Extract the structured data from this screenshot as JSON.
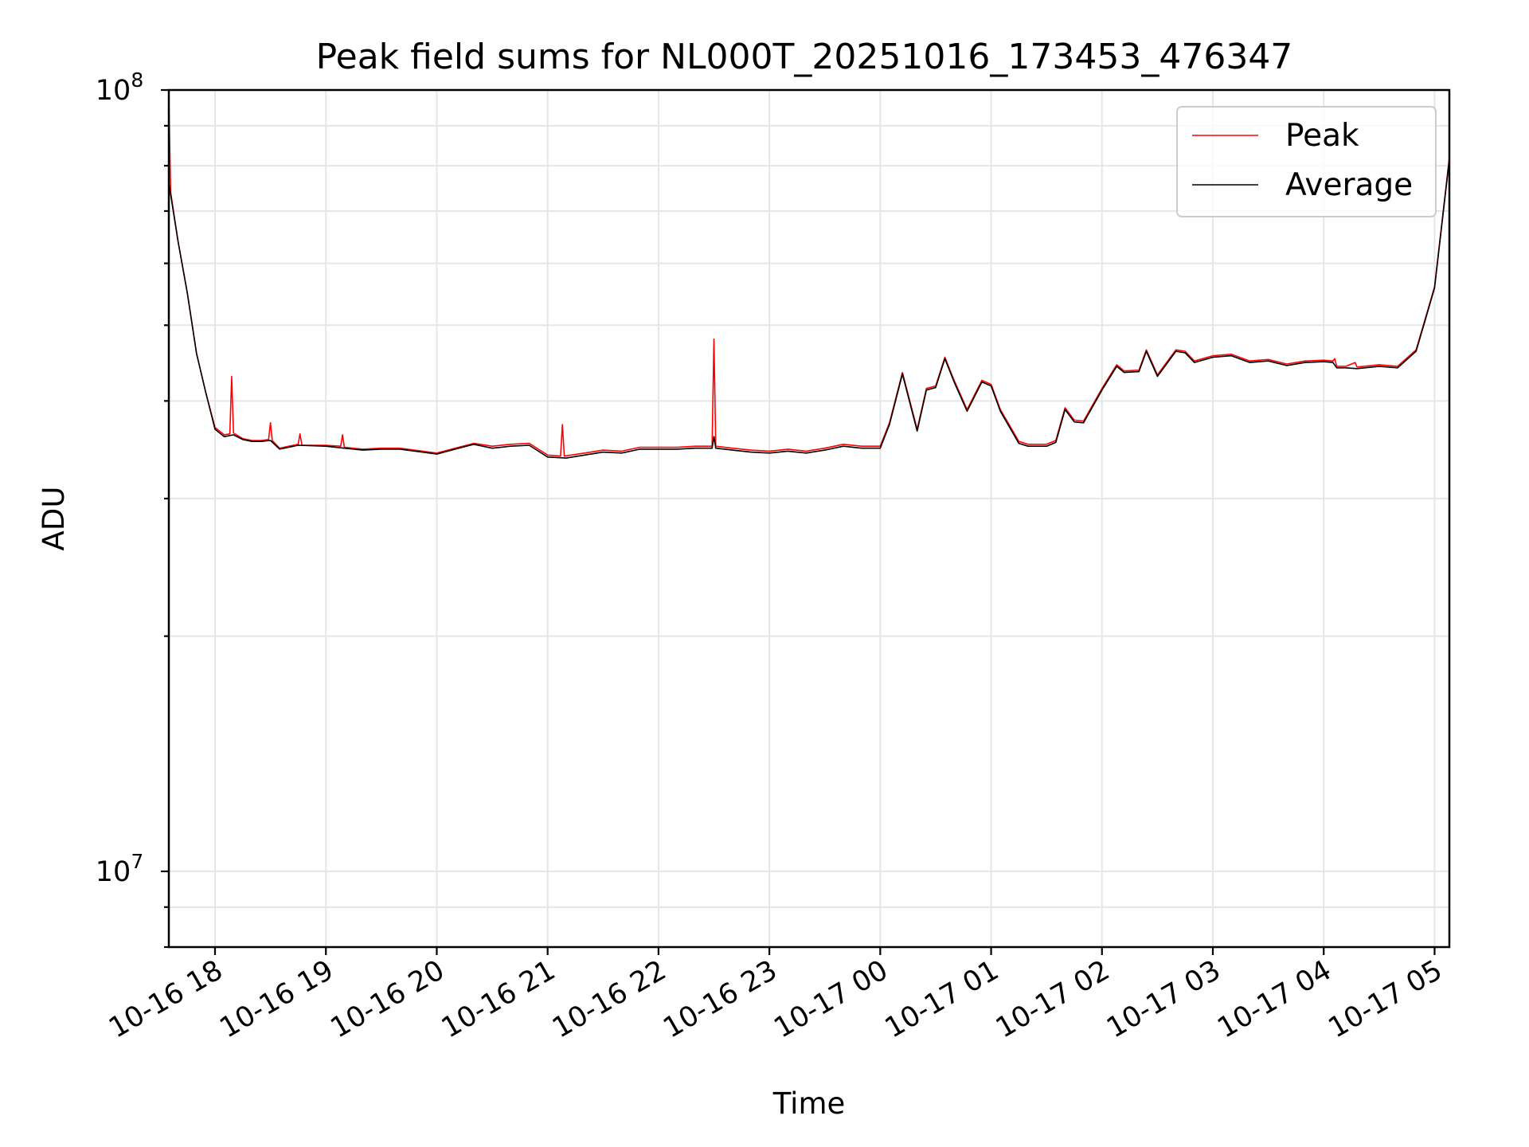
{
  "chart_data": {
    "type": "line",
    "title": "Peak field sums for NL000T_20251016_173453_476347",
    "xlabel": "Time",
    "ylabel": "ADU",
    "yscale": "log",
    "ylim": [
      8000000,
      100000000
    ],
    "xlim": [
      "2025-10-16 17:35",
      "2025-10-17 05:08"
    ],
    "grid": true,
    "legend": "top-right",
    "x_ticks": [
      "10-16 18",
      "10-16 19",
      "10-16 20",
      "10-16 21",
      "10-16 22",
      "10-16 23",
      "10-17 00",
      "10-17 01",
      "10-17 02",
      "10-17 03",
      "10-17 04",
      "10-17 05"
    ],
    "y_ticks": [
      {
        "base": "10",
        "exp": "7",
        "value": 10000000
      },
      {
        "base": "10",
        "exp": "8",
        "value": 100000000
      }
    ],
    "series": [
      {
        "name": "Peak",
        "color": "#ff0000",
        "points": [
          [
            "2025-10-16 17:35",
            98000000
          ],
          [
            "2025-10-16 17:36",
            74000000
          ],
          [
            "2025-10-16 17:40",
            64000000
          ],
          [
            "2025-10-16 17:45",
            55000000
          ],
          [
            "2025-10-16 17:50",
            46000000
          ],
          [
            "2025-10-16 17:55",
            41000000
          ],
          [
            "2025-10-16 18:00",
            37000000
          ],
          [
            "2025-10-16 18:05",
            36200000
          ],
          [
            "2025-10-16 18:08",
            36300000
          ],
          [
            "2025-10-16 18:09",
            43000000
          ],
          [
            "2025-10-16 18:10",
            36400000
          ],
          [
            "2025-10-16 18:15",
            35800000
          ],
          [
            "2025-10-16 18:20",
            35600000
          ],
          [
            "2025-10-16 18:25",
            35600000
          ],
          [
            "2025-10-16 18:29",
            35700000
          ],
          [
            "2025-10-16 18:30",
            37500000
          ],
          [
            "2025-10-16 18:31",
            35600000
          ],
          [
            "2025-10-16 18:35",
            34800000
          ],
          [
            "2025-10-16 18:40",
            35000000
          ],
          [
            "2025-10-16 18:45",
            35200000
          ],
          [
            "2025-10-16 18:46",
            36300000
          ],
          [
            "2025-10-16 18:47",
            35100000
          ],
          [
            "2025-10-16 19:00",
            35100000
          ],
          [
            "2025-10-16 19:08",
            35000000
          ],
          [
            "2025-10-16 19:09",
            36200000
          ],
          [
            "2025-10-16 19:10",
            34900000
          ],
          [
            "2025-10-16 19:20",
            34700000
          ],
          [
            "2025-10-16 19:30",
            34800000
          ],
          [
            "2025-10-16 19:40",
            34800000
          ],
          [
            "2025-10-16 20:00",
            34300000
          ],
          [
            "2025-10-16 20:10",
            34800000
          ],
          [
            "2025-10-16 20:20",
            35300000
          ],
          [
            "2025-10-16 20:30",
            35000000
          ],
          [
            "2025-10-16 20:40",
            35200000
          ],
          [
            "2025-10-16 20:50",
            35300000
          ],
          [
            "2025-10-16 21:00",
            34100000
          ],
          [
            "2025-10-16 21:07",
            34000000
          ],
          [
            "2025-10-16 21:08",
            37300000
          ],
          [
            "2025-10-16 21:09",
            34000000
          ],
          [
            "2025-10-16 21:20",
            34300000
          ],
          [
            "2025-10-16 21:30",
            34600000
          ],
          [
            "2025-10-16 21:40",
            34500000
          ],
          [
            "2025-10-16 21:50",
            34900000
          ],
          [
            "2025-10-16 22:00",
            34900000
          ],
          [
            "2025-10-16 22:10",
            34900000
          ],
          [
            "2025-10-16 22:20",
            35000000
          ],
          [
            "2025-10-16 22:29",
            35000000
          ],
          [
            "2025-10-16 22:30",
            48000000
          ],
          [
            "2025-10-16 22:31",
            35000000
          ],
          [
            "2025-10-16 22:40",
            34800000
          ],
          [
            "2025-10-16 22:50",
            34600000
          ],
          [
            "2025-10-16 23:00",
            34500000
          ],
          [
            "2025-10-16 23:10",
            34700000
          ],
          [
            "2025-10-16 23:20",
            34500000
          ],
          [
            "2025-10-16 23:30",
            34800000
          ],
          [
            "2025-10-16 23:40",
            35200000
          ],
          [
            "2025-10-16 23:50",
            35000000
          ],
          [
            "2025-10-17 00:00",
            35000000
          ],
          [
            "2025-10-17 00:05",
            37500000
          ],
          [
            "2025-10-17 00:12",
            43500000
          ],
          [
            "2025-10-17 00:20",
            36800000
          ],
          [
            "2025-10-17 00:25",
            41500000
          ],
          [
            "2025-10-17 00:30",
            41800000
          ],
          [
            "2025-10-17 00:35",
            45500000
          ],
          [
            "2025-10-17 00:40",
            42500000
          ],
          [
            "2025-10-17 00:47",
            39000000
          ],
          [
            "2025-10-17 00:55",
            42500000
          ],
          [
            "2025-10-17 01:00",
            42000000
          ],
          [
            "2025-10-17 01:05",
            39000000
          ],
          [
            "2025-10-17 01:15",
            35500000
          ],
          [
            "2025-10-17 01:20",
            35200000
          ],
          [
            "2025-10-17 01:30",
            35200000
          ],
          [
            "2025-10-17 01:35",
            35600000
          ],
          [
            "2025-10-17 01:40",
            39200000
          ],
          [
            "2025-10-17 01:45",
            37800000
          ],
          [
            "2025-10-17 01:50",
            37700000
          ],
          [
            "2025-10-17 02:00",
            41500000
          ],
          [
            "2025-10-17 02:08",
            44500000
          ],
          [
            "2025-10-17 02:12",
            43700000
          ],
          [
            "2025-10-17 02:20",
            43800000
          ],
          [
            "2025-10-17 02:24",
            46500000
          ],
          [
            "2025-10-17 02:30",
            43200000
          ],
          [
            "2025-10-17 02:40",
            46500000
          ],
          [
            "2025-10-17 02:45",
            46300000
          ],
          [
            "2025-10-17 02:50",
            45000000
          ],
          [
            "2025-10-17 03:00",
            45700000
          ],
          [
            "2025-10-17 03:10",
            45900000
          ],
          [
            "2025-10-17 03:20",
            45000000
          ],
          [
            "2025-10-17 03:30",
            45200000
          ],
          [
            "2025-10-17 03:40",
            44600000
          ],
          [
            "2025-10-17 03:50",
            45000000
          ],
          [
            "2025-10-17 04:00",
            45100000
          ],
          [
            "2025-10-17 04:05",
            45000000
          ],
          [
            "2025-10-17 04:06",
            45300000
          ],
          [
            "2025-10-17 04:07",
            44300000
          ],
          [
            "2025-10-17 04:12",
            44300000
          ],
          [
            "2025-10-17 04:17",
            44800000
          ],
          [
            "2025-10-17 04:18",
            44200000
          ],
          [
            "2025-10-17 04:30",
            44500000
          ],
          [
            "2025-10-17 04:40",
            44300000
          ],
          [
            "2025-10-17 04:50",
            46500000
          ],
          [
            "2025-10-17 04:55",
            51000000
          ],
          [
            "2025-10-17 05:00",
            56000000
          ],
          [
            "2025-10-17 05:08",
            82000000
          ]
        ]
      },
      {
        "name": "Average",
        "color": "#000000",
        "points": [
          [
            "2025-10-16 17:35",
            76000000
          ],
          [
            "2025-10-16 17:40",
            64000000
          ],
          [
            "2025-10-16 17:45",
            55000000
          ],
          [
            "2025-10-16 17:50",
            46000000
          ],
          [
            "2025-10-16 17:55",
            41000000
          ],
          [
            "2025-10-16 18:00",
            36800000
          ],
          [
            "2025-10-16 18:05",
            36000000
          ],
          [
            "2025-10-16 18:10",
            36200000
          ],
          [
            "2025-10-16 18:15",
            35700000
          ],
          [
            "2025-10-16 18:20",
            35500000
          ],
          [
            "2025-10-16 18:25",
            35500000
          ],
          [
            "2025-10-16 18:30",
            35600000
          ],
          [
            "2025-10-16 18:35",
            34700000
          ],
          [
            "2025-10-16 18:40",
            34900000
          ],
          [
            "2025-10-16 18:45",
            35100000
          ],
          [
            "2025-10-16 19:00",
            35000000
          ],
          [
            "2025-10-16 19:10",
            34800000
          ],
          [
            "2025-10-16 19:20",
            34600000
          ],
          [
            "2025-10-16 19:30",
            34700000
          ],
          [
            "2025-10-16 19:40",
            34700000
          ],
          [
            "2025-10-16 20:00",
            34200000
          ],
          [
            "2025-10-16 20:10",
            34700000
          ],
          [
            "2025-10-16 20:20",
            35200000
          ],
          [
            "2025-10-16 20:30",
            34800000
          ],
          [
            "2025-10-16 20:40",
            35000000
          ],
          [
            "2025-10-16 20:50",
            35100000
          ],
          [
            "2025-10-16 21:00",
            33900000
          ],
          [
            "2025-10-16 21:10",
            33800000
          ],
          [
            "2025-10-16 21:20",
            34100000
          ],
          [
            "2025-10-16 21:30",
            34400000
          ],
          [
            "2025-10-16 21:40",
            34300000
          ],
          [
            "2025-10-16 21:50",
            34700000
          ],
          [
            "2025-10-16 22:00",
            34700000
          ],
          [
            "2025-10-16 22:10",
            34700000
          ],
          [
            "2025-10-16 22:20",
            34800000
          ],
          [
            "2025-10-16 22:29",
            34800000
          ],
          [
            "2025-10-16 22:30",
            36000000
          ],
          [
            "2025-10-16 22:31",
            34800000
          ],
          [
            "2025-10-16 22:40",
            34600000
          ],
          [
            "2025-10-16 22:50",
            34400000
          ],
          [
            "2025-10-16 23:00",
            34300000
          ],
          [
            "2025-10-16 23:10",
            34500000
          ],
          [
            "2025-10-16 23:20",
            34300000
          ],
          [
            "2025-10-16 23:30",
            34600000
          ],
          [
            "2025-10-16 23:40",
            35000000
          ],
          [
            "2025-10-16 23:50",
            34800000
          ],
          [
            "2025-10-17 00:00",
            34800000
          ],
          [
            "2025-10-17 00:05",
            37300000
          ],
          [
            "2025-10-17 00:12",
            43300000
          ],
          [
            "2025-10-17 00:20",
            36600000
          ],
          [
            "2025-10-17 00:25",
            41300000
          ],
          [
            "2025-10-17 00:30",
            41600000
          ],
          [
            "2025-10-17 00:35",
            45300000
          ],
          [
            "2025-10-17 00:40",
            42300000
          ],
          [
            "2025-10-17 00:47",
            38800000
          ],
          [
            "2025-10-17 00:55",
            42300000
          ],
          [
            "2025-10-17 01:00",
            41800000
          ],
          [
            "2025-10-17 01:05",
            38800000
          ],
          [
            "2025-10-17 01:15",
            35300000
          ],
          [
            "2025-10-17 01:20",
            35000000
          ],
          [
            "2025-10-17 01:30",
            35000000
          ],
          [
            "2025-10-17 01:35",
            35400000
          ],
          [
            "2025-10-17 01:40",
            39000000
          ],
          [
            "2025-10-17 01:45",
            37600000
          ],
          [
            "2025-10-17 01:50",
            37500000
          ],
          [
            "2025-10-17 02:00",
            41300000
          ],
          [
            "2025-10-17 02:08",
            44300000
          ],
          [
            "2025-10-17 02:12",
            43500000
          ],
          [
            "2025-10-17 02:20",
            43600000
          ],
          [
            "2025-10-17 02:24",
            46300000
          ],
          [
            "2025-10-17 02:30",
            43000000
          ],
          [
            "2025-10-17 02:40",
            46300000
          ],
          [
            "2025-10-17 02:45",
            46100000
          ],
          [
            "2025-10-17 02:50",
            44800000
          ],
          [
            "2025-10-17 03:00",
            45500000
          ],
          [
            "2025-10-17 03:10",
            45700000
          ],
          [
            "2025-10-17 03:20",
            44800000
          ],
          [
            "2025-10-17 03:30",
            45000000
          ],
          [
            "2025-10-17 03:40",
            44400000
          ],
          [
            "2025-10-17 03:50",
            44800000
          ],
          [
            "2025-10-17 04:00",
            44900000
          ],
          [
            "2025-10-17 04:05",
            44800000
          ],
          [
            "2025-10-17 04:07",
            44100000
          ],
          [
            "2025-10-17 04:12",
            44100000
          ],
          [
            "2025-10-17 04:18",
            44000000
          ],
          [
            "2025-10-17 04:30",
            44300000
          ],
          [
            "2025-10-17 04:40",
            44100000
          ],
          [
            "2025-10-17 04:50",
            46300000
          ],
          [
            "2025-10-17 04:55",
            50800000
          ],
          [
            "2025-10-17 05:00",
            55800000
          ],
          [
            "2025-10-17 05:08",
            81500000
          ]
        ]
      }
    ]
  }
}
